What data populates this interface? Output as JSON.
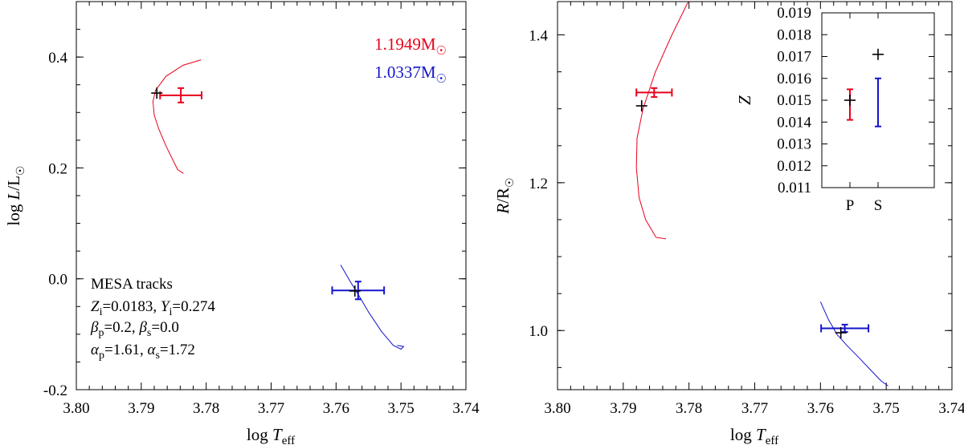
{
  "chart_data": [
    {
      "panel": "left",
      "type": "line",
      "title": "",
      "xlabel": {
        "base": "log ",
        "var": "T",
        "sub": "eff"
      },
      "ylabel": {
        "base": "log ",
        "var": "L",
        "suffix": "/L",
        "sun": "☉"
      },
      "xlim": [
        3.8,
        3.74
      ],
      "ylim": [
        -0.2,
        0.5
      ],
      "xticks": [
        "3.80",
        "3.79",
        "3.78",
        "3.77",
        "3.76",
        "3.75",
        "3.74"
      ],
      "xtick_values": [
        3.8,
        3.79,
        3.78,
        3.77,
        3.76,
        3.75,
        3.74
      ],
      "yticks": [
        "-0.2",
        "0.0",
        "0.2",
        "0.4"
      ],
      "ytick_values": [
        -0.2,
        0.0,
        0.2,
        0.4
      ],
      "legend": [
        {
          "label": "1.1949M",
          "sun": "☉",
          "color": "#e8001a"
        },
        {
          "label": "1.0337M",
          "sun": "☉",
          "color": "#1414cc"
        }
      ],
      "annotation": {
        "line1": "MESA tracks",
        "line2": {
          "z": "Z",
          "zsub": "i",
          "zval": "=0.0183, ",
          "y": "Y",
          "ysub": "i",
          "yval": "=0.274"
        },
        "line3": {
          "b1": "β",
          "b1sub": "p",
          "b1val": "=0.2, ",
          "b2": "β",
          "b2sub": "s",
          "b2val": "=0.0"
        },
        "line4": {
          "a1": "α",
          "a1sub": "p",
          "a1val": "=1.61, ",
          "a2": "α",
          "a2sub": "s",
          "a2val": "=1.72"
        }
      },
      "series": [
        {
          "name": "1.1949M track",
          "color": "#e8001a",
          "x": [
            3.7808,
            3.7836,
            3.7862,
            3.7878,
            3.7882,
            3.788,
            3.7873,
            3.7862,
            3.7844,
            3.7835
          ],
          "y": [
            0.395,
            0.385,
            0.365,
            0.34,
            0.32,
            0.295,
            0.27,
            0.24,
            0.197,
            0.19
          ]
        },
        {
          "name": "1.0337M track",
          "color": "#1414cc",
          "x": [
            3.7593,
            3.7578,
            3.7565,
            3.755,
            3.753,
            3.7512,
            3.75,
            3.7496,
            3.7506
          ],
          "y": [
            0.025,
            -0.005,
            -0.03,
            -0.06,
            -0.095,
            -0.12,
            -0.127,
            -0.122,
            -0.12
          ]
        }
      ],
      "observed": [
        {
          "name": "P",
          "color": "#e8001a",
          "x": 3.7839,
          "y": 0.331,
          "xerr": 0.0032,
          "yerr": 0.013
        },
        {
          "name": "S",
          "color": "#1414cc",
          "x": 3.7566,
          "y": -0.021,
          "xerr": 0.004,
          "yerr": 0.016
        }
      ],
      "model_points": [
        {
          "name": "P",
          "x": 3.7876,
          "y": 0.335
        },
        {
          "name": "S",
          "x": 3.7571,
          "y": -0.022
        }
      ]
    },
    {
      "panel": "right",
      "type": "line",
      "title": "",
      "xlabel": {
        "base": "log ",
        "var": "T",
        "sub": "eff"
      },
      "ylabel": {
        "var": "R",
        "suffix": "/R",
        "sun": "☉"
      },
      "xlim": [
        3.8,
        3.74
      ],
      "ylim": [
        0.92,
        1.445
      ],
      "xticks": [
        "3.80",
        "3.79",
        "3.78",
        "3.77",
        "3.76",
        "3.75",
        "3.74"
      ],
      "xtick_values": [
        3.8,
        3.79,
        3.78,
        3.77,
        3.76,
        3.75,
        3.74
      ],
      "yticks": [
        "1.0",
        "1.2",
        "1.4"
      ],
      "ytick_values": [
        1.0,
        1.2,
        1.4
      ],
      "series": [
        {
          "name": "1.1949M track",
          "color": "#e8001a",
          "x": [
            3.7801,
            3.7826,
            3.7851,
            3.787,
            3.7879,
            3.788,
            3.7876,
            3.7866,
            3.785,
            3.7835
          ],
          "y": [
            1.445,
            1.4,
            1.35,
            1.3,
            1.26,
            1.22,
            1.18,
            1.15,
            1.126,
            1.124
          ]
        },
        {
          "name": "1.0337M track",
          "color": "#1414cc",
          "x": [
            3.76,
            3.7588,
            3.7575,
            3.756,
            3.754,
            3.7522,
            3.7508,
            3.7497
          ],
          "y": [
            1.039,
            1.015,
            0.995,
            0.98,
            0.962,
            0.945,
            0.932,
            0.925
          ]
        }
      ],
      "observed": [
        {
          "name": "P",
          "color": "#e8001a",
          "x": 3.7853,
          "y": 1.322,
          "xerr": 0.0027,
          "yerr": 0.006
        },
        {
          "name": "S",
          "color": "#1414cc",
          "x": 3.7563,
          "y": 1.003,
          "xerr": 0.0036,
          "yerr": 0.005
        }
      ],
      "model_points": [
        {
          "name": "P",
          "x": 3.7872,
          "y": 1.304
        },
        {
          "name": "S",
          "x": 3.7569,
          "y": 0.997
        }
      ],
      "inset": {
        "type": "scatter",
        "ylabel": "Z",
        "ylim": [
          0.011,
          0.019
        ],
        "yticks": [
          "0.011",
          "0.012",
          "0.013",
          "0.014",
          "0.015",
          "0.016",
          "0.017",
          "0.018",
          "0.019"
        ],
        "ytick_values": [
          0.011,
          0.012,
          0.013,
          0.014,
          0.015,
          0.016,
          0.017,
          0.018,
          0.019
        ],
        "categories": [
          "P",
          "S"
        ],
        "observed": [
          {
            "name": "P",
            "color": "#e8001a",
            "y": 0.0148,
            "ylo": 0.0141,
            "yhi": 0.0155
          },
          {
            "name": "S",
            "color": "#1414cc",
            "y": 0.0149,
            "ylo": 0.0138,
            "yhi": 0.016
          }
        ],
        "model_points": [
          {
            "name": "P",
            "y": 0.015
          },
          {
            "name": "S",
            "y": 0.0171
          }
        ]
      }
    }
  ]
}
